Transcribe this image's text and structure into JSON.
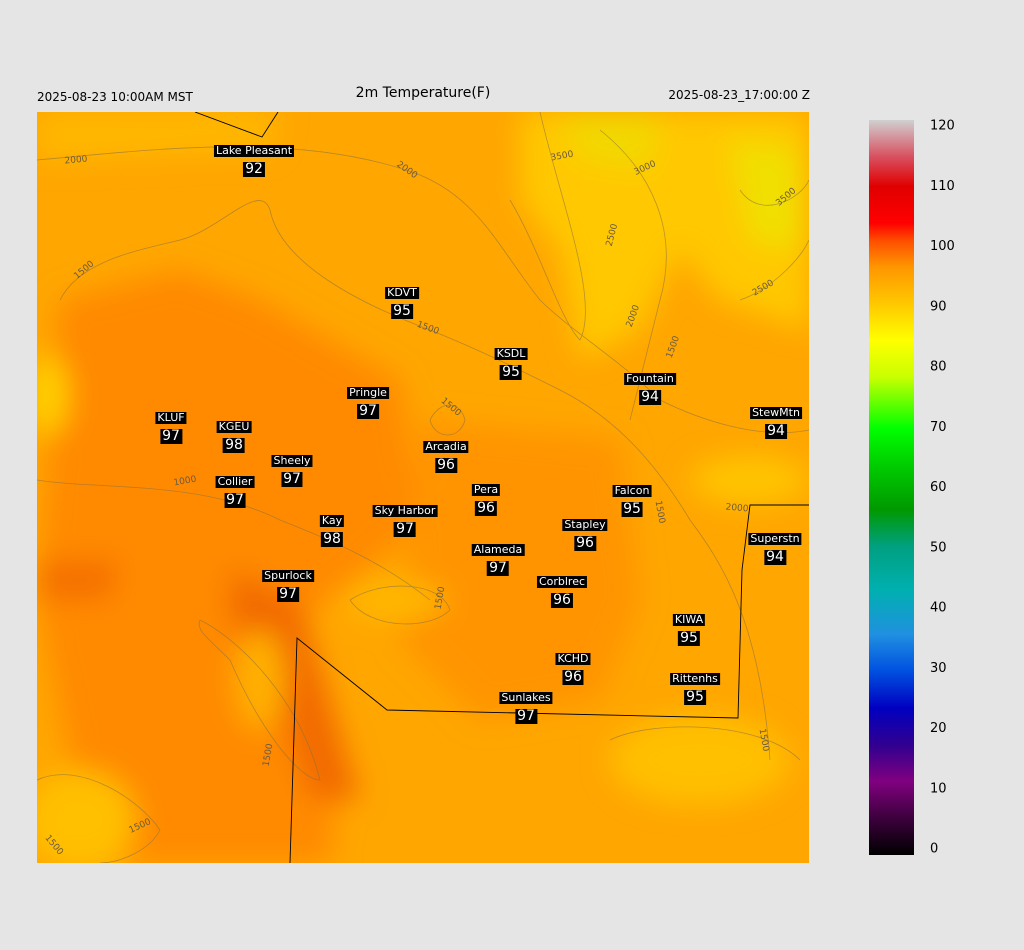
{
  "header": {
    "left": "2025-08-23 10:00AM MST",
    "title": "2m Temperature(F)",
    "right": "2025-08-23_17:00:00 Z"
  },
  "stations": [
    {
      "name": "Lake Pleasant",
      "value": 92
    },
    {
      "name": "KDVT",
      "value": 95
    },
    {
      "name": "KSDL",
      "value": 95
    },
    {
      "name": "Pringle",
      "value": 97
    },
    {
      "name": "Fountain",
      "value": 94
    },
    {
      "name": "KLUF",
      "value": 97
    },
    {
      "name": "KGEU",
      "value": 98
    },
    {
      "name": "StewMtn",
      "value": 94
    },
    {
      "name": "Arcadia",
      "value": 96
    },
    {
      "name": "Sheely",
      "value": 97
    },
    {
      "name": "Collier",
      "value": 97
    },
    {
      "name": "Pera",
      "value": 96
    },
    {
      "name": "Falcon",
      "value": 95
    },
    {
      "name": "Sky Harbor",
      "value": 97
    },
    {
      "name": "Kay",
      "value": 98
    },
    {
      "name": "Stapley",
      "value": 96
    },
    {
      "name": "Superstn",
      "value": 94
    },
    {
      "name": "Alameda",
      "value": 97
    },
    {
      "name": "Spurlock",
      "value": 97
    },
    {
      "name": "Corblrec",
      "value": 96
    },
    {
      "name": "KIWA",
      "value": 95
    },
    {
      "name": "KCHD",
      "value": 96
    },
    {
      "name": "Rittenhs",
      "value": 95
    },
    {
      "name": "Sunlakes",
      "value": 97
    }
  ],
  "contour_labels": [
    "2000",
    "2000",
    "3500",
    "3000",
    "3500",
    "2500",
    "2500",
    "1500",
    "1500",
    "2000",
    "1500",
    "1500",
    "1000",
    "2000",
    "1500",
    "1500",
    "1500",
    "1500",
    "1500",
    "1500"
  ],
  "colorbar": {
    "ticks": [
      0,
      10,
      20,
      30,
      40,
      50,
      60,
      70,
      80,
      90,
      100,
      110,
      120
    ],
    "lim": [
      0,
      120
    ]
  }
}
